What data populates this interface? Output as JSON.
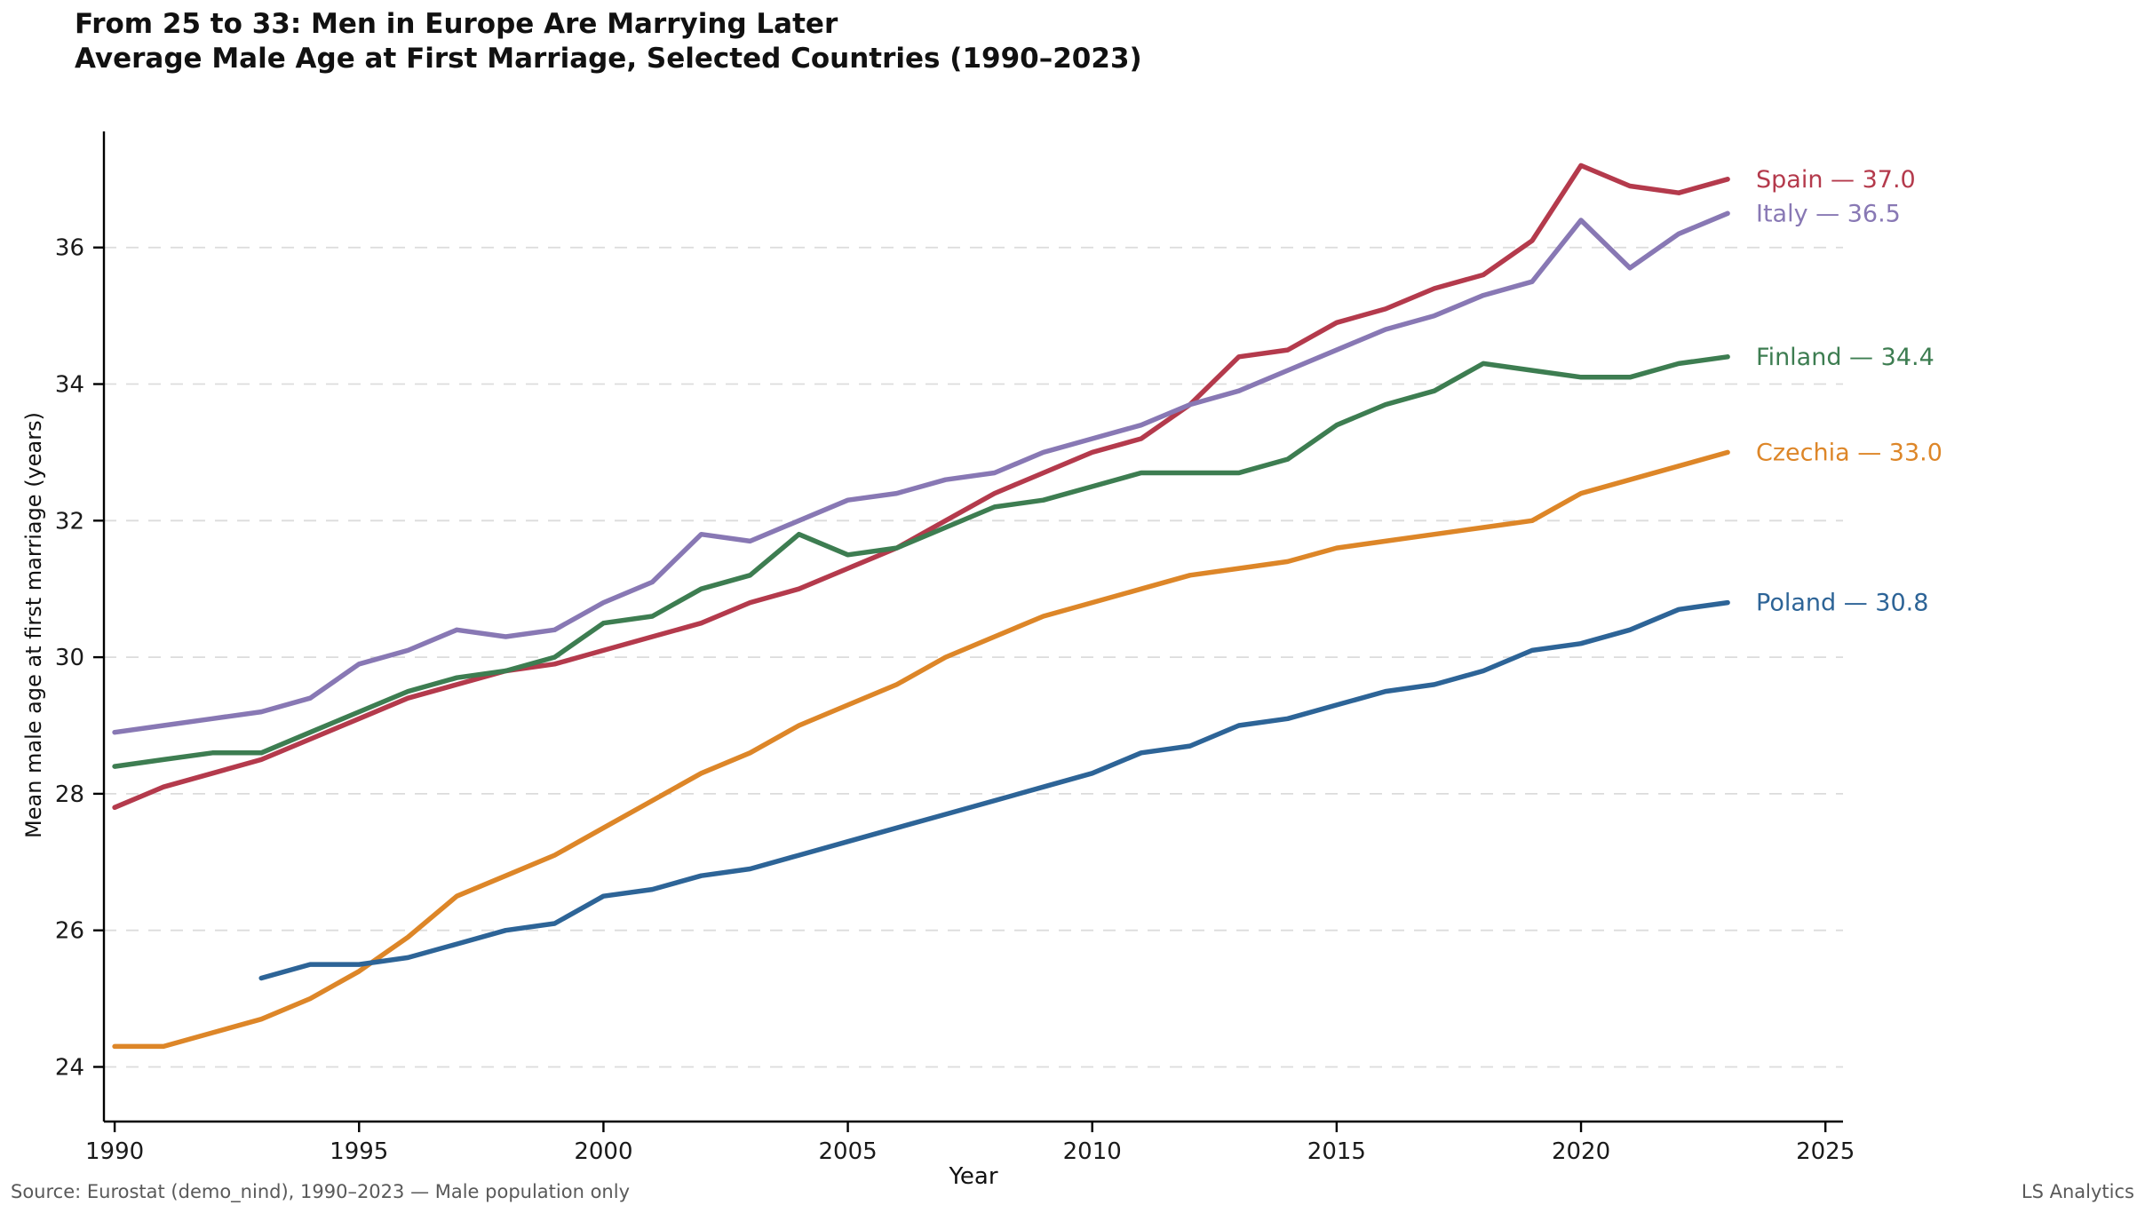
{
  "header": {
    "title": "From 25 to 33: Men in Europe Are Marrying Later",
    "subtitle": "Average Male Age at First Marriage, Selected Countries (1990–2023)"
  },
  "footer": {
    "source": "Source: Eurostat (demo_nind), 1990–2023 — Male population only",
    "branding": "LS Analytics"
  },
  "chart_data": {
    "type": "line",
    "title": "From 25 to 33: Men in Europe Are Marrying Later",
    "subtitle": "Average Male Age at First Marriage, Selected Countries (1990–2023)",
    "xlabel": "Year",
    "ylabel": "Mean male age at first marriage (years)",
    "xlim": [
      1989.78,
      2025.36
    ],
    "ylim": [
      23.2,
      37.7
    ],
    "x_ticks": [
      1990,
      1995,
      2000,
      2005,
      2010,
      2015,
      2020,
      2025
    ],
    "y_ticks": [
      24,
      26,
      28,
      30,
      32,
      34,
      36
    ],
    "grid": "horizontal-dashed",
    "grid_color": "#dcdcdc",
    "axis_color": "#000000",
    "legend_position": "line-end-labels-right",
    "years": [
      1990,
      1991,
      1992,
      1993,
      1994,
      1995,
      1996,
      1997,
      1998,
      1999,
      2000,
      2001,
      2002,
      2003,
      2004,
      2005,
      2006,
      2007,
      2008,
      2009,
      2010,
      2011,
      2012,
      2013,
      2014,
      2015,
      2016,
      2017,
      2018,
      2019,
      2020,
      2021,
      2022,
      2023
    ],
    "series": [
      {
        "name": "Spain",
        "color": "#b43a4c",
        "end_label": "Spain — 37.0",
        "values": [
          27.8,
          28.1,
          28.3,
          28.5,
          28.8,
          29.1,
          29.4,
          29.6,
          29.8,
          29.9,
          30.1,
          30.3,
          30.5,
          30.8,
          31.0,
          31.3,
          31.6,
          32.0,
          32.4,
          32.7,
          33.0,
          33.2,
          33.7,
          34.4,
          34.5,
          34.9,
          35.1,
          35.4,
          35.6,
          36.1,
          37.2,
          36.9,
          36.8,
          37.0
        ]
      },
      {
        "name": "Italy",
        "color": "#8878b4",
        "end_label": "Italy — 36.5",
        "values": [
          28.9,
          29.0,
          29.1,
          29.2,
          29.4,
          29.9,
          30.1,
          30.4,
          30.3,
          30.4,
          30.8,
          31.1,
          31.8,
          31.7,
          32.0,
          32.3,
          32.4,
          32.6,
          32.7,
          33.0,
          33.2,
          33.4,
          33.7,
          33.9,
          34.2,
          34.5,
          34.8,
          35.0,
          35.3,
          35.5,
          36.4,
          35.7,
          36.2,
          36.5
        ]
      },
      {
        "name": "Finland",
        "color": "#3d7d51",
        "end_label": "Finland — 34.4",
        "values": [
          28.4,
          28.5,
          28.6,
          28.6,
          28.9,
          29.2,
          29.5,
          29.7,
          29.8,
          30.0,
          30.5,
          30.6,
          31.0,
          31.2,
          31.8,
          31.5,
          31.6,
          31.9,
          32.2,
          32.3,
          32.5,
          32.7,
          32.7,
          32.7,
          32.9,
          33.4,
          33.7,
          33.9,
          34.3,
          34.2,
          34.1,
          34.1,
          34.3,
          34.4
        ]
      },
      {
        "name": "Czechia",
        "color": "#dd8628",
        "end_label": "Czechia — 33.0",
        "values": [
          24.3,
          24.3,
          24.5,
          24.7,
          25.0,
          25.4,
          25.9,
          26.5,
          26.8,
          27.1,
          27.5,
          27.9,
          28.3,
          28.6,
          29.0,
          29.3,
          29.6,
          30.0,
          30.3,
          30.6,
          30.8,
          31.0,
          31.2,
          31.3,
          31.4,
          31.6,
          31.7,
          31.8,
          31.9,
          32.0,
          32.4,
          32.6,
          32.8,
          33.0
        ]
      },
      {
        "name": "Poland",
        "color": "#2d6497",
        "end_label": "Poland — 30.8",
        "values": [
          null,
          null,
          null,
          25.3,
          25.5,
          25.5,
          25.6,
          25.8,
          26.0,
          26.1,
          26.5,
          26.6,
          26.8,
          26.9,
          27.1,
          27.3,
          27.5,
          27.7,
          27.9,
          28.1,
          28.3,
          28.6,
          28.7,
          29.0,
          29.1,
          29.3,
          29.5,
          29.6,
          29.8,
          30.1,
          30.2,
          30.4,
          30.7,
          30.8
        ]
      }
    ]
  }
}
